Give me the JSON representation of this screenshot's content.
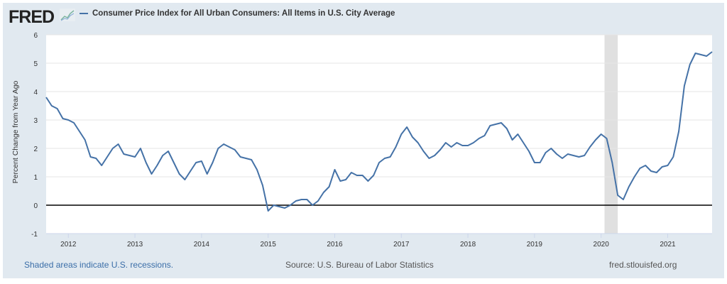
{
  "header": {
    "logo": "FRED",
    "legend": "Consumer Price Index for All Urban Consumers: All Items in U.S. City Average"
  },
  "footer": {
    "recessions": "Shaded areas indicate U.S. recessions.",
    "source": "Source: U.S. Bureau of Labor Statistics",
    "site": "fred.stlouisfed.org"
  },
  "colors": {
    "line": "#4572a7",
    "background": "#e1e9f0",
    "recession": "#e0e0e0"
  },
  "chart_data": {
    "type": "line",
    "title": "Consumer Price Index for All Urban Consumers: All Items in U.S. City Average",
    "ylabel": "Percent Change from Year Ago",
    "xlabel": "",
    "start": "2011-09",
    "frequency": "monthly",
    "ylim": [
      -1,
      6
    ],
    "yticks": [
      "-1",
      "0",
      "1",
      "2",
      "3",
      "4",
      "5",
      "6"
    ],
    "xticks": [
      "2012",
      "2013",
      "2014",
      "2015",
      "2016",
      "2017",
      "2018",
      "2019",
      "2020",
      "2021"
    ],
    "recessions": [
      [
        "2020-02",
        "2020-04"
      ]
    ],
    "series": [
      {
        "name": "CPI-U percent change from year ago",
        "values": [
          3.8,
          3.5,
          3.4,
          3.05,
          3.0,
          2.9,
          2.6,
          2.3,
          1.7,
          1.65,
          1.4,
          1.7,
          2.0,
          2.15,
          1.8,
          1.75,
          1.7,
          2.0,
          1.5,
          1.1,
          1.4,
          1.75,
          1.9,
          1.5,
          1.1,
          0.9,
          1.2,
          1.5,
          1.55,
          1.1,
          1.5,
          2.0,
          2.15,
          2.05,
          1.95,
          1.7,
          1.65,
          1.6,
          1.25,
          0.7,
          -0.2,
          0.0,
          -0.05,
          -0.1,
          0.0,
          0.15,
          0.2,
          0.2,
          0.0,
          0.15,
          0.45,
          0.65,
          1.25,
          0.85,
          0.9,
          1.15,
          1.05,
          1.05,
          0.85,
          1.05,
          1.5,
          1.65,
          1.7,
          2.05,
          2.5,
          2.75,
          2.4,
          2.2,
          1.9,
          1.65,
          1.75,
          1.95,
          2.2,
          2.05,
          2.2,
          2.1,
          2.1,
          2.2,
          2.35,
          2.45,
          2.8,
          2.85,
          2.9,
          2.7,
          2.3,
          2.5,
          2.2,
          1.9,
          1.5,
          1.5,
          1.85,
          2.0,
          1.8,
          1.65,
          1.8,
          1.75,
          1.7,
          1.75,
          2.05,
          2.3,
          2.5,
          2.35,
          1.5,
          0.35,
          0.2,
          0.65,
          1.0,
          1.3,
          1.4,
          1.2,
          1.15,
          1.35,
          1.4,
          1.7,
          2.6,
          4.2,
          4.95,
          5.35,
          5.3,
          5.25,
          5.4
        ]
      }
    ]
  }
}
